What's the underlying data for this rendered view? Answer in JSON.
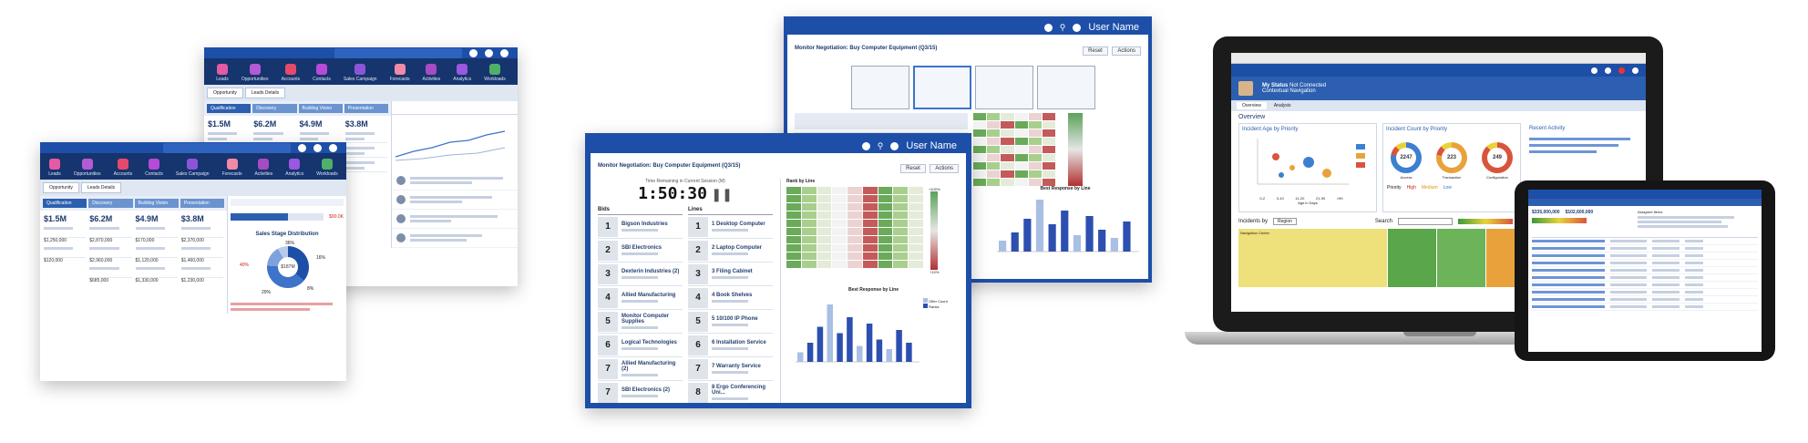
{
  "crm": {
    "topbar_user": "",
    "launcher_apps": [
      {
        "label": "Leads",
        "color": "#e45aa4"
      },
      {
        "label": "Opportunities",
        "color": "#b35bd4"
      },
      {
        "label": "Accounts",
        "color": "#e64a6a"
      },
      {
        "label": "Contacts",
        "color": "#b84ad8"
      },
      {
        "label": "Sales Campaign",
        "color": "#8c55d8"
      },
      {
        "label": "Forecasts",
        "color": "#f08aa5"
      },
      {
        "label": "Activities",
        "color": "#a64bc2"
      },
      {
        "label": "Analytics",
        "color": "#9a57e0"
      },
      {
        "label": "Workloads",
        "color": "#4fb06a"
      }
    ],
    "tabs": [
      "Opportunity",
      "Leads Details"
    ],
    "stages": [
      "Qualification",
      "Discovery",
      "Building Vision",
      "Presentation"
    ],
    "kpis": [
      "$1.5M",
      "$6.2M",
      "$4.9M",
      "$3.8M"
    ],
    "card_values": [
      "$1,250,000",
      "$2,870,000",
      "$170,000",
      "$2,370,000",
      "$120,000",
      "$2,960,000",
      "$1,120,000",
      "$1,460,000",
      "$685,000",
      "$1,330,000",
      "$1,230,000"
    ],
    "funnel_title": "Sales Stage Distribution",
    "funnel_total": "$187M",
    "funnel_segments": [
      "36%",
      "40%",
      "16%",
      "20%",
      "8%"
    ],
    "quota_label": "$90.0K"
  },
  "dashboard": {
    "user_label": "User Name",
    "title": "Monitor Negotiation: Buy Computer Equipment (Q3/15)",
    "back_button": "Reset",
    "actions_button": "Actions",
    "timer_caption": "Time Remaining in Current Session (M)",
    "timer": "1:50:30",
    "bids_header": "Bids",
    "lines_header": "Lines",
    "bid_rows": [
      {
        "rank": "1",
        "name": "Bigson Industries"
      },
      {
        "rank": "2",
        "name": "SBI Electronics"
      },
      {
        "rank": "3",
        "name": "Dexterin Industries (2)"
      },
      {
        "rank": "4",
        "name": "Allied Manufacturing"
      },
      {
        "rank": "5",
        "name": "Monitor Computer Supplies"
      },
      {
        "rank": "6",
        "name": "Logical Technologies"
      },
      {
        "rank": "7",
        "name": "Allied Manufacturing (2)"
      },
      {
        "rank": "7",
        "name": "SBI Electronics (2)"
      }
    ],
    "line_rows": [
      {
        "rank": "1",
        "name": "1 Desktop Computer"
      },
      {
        "rank": "2",
        "name": "2 Laptop Computer"
      },
      {
        "rank": "3",
        "name": "3 Filing Cabinet"
      },
      {
        "rank": "4",
        "name": "4 Book Shelves"
      },
      {
        "rank": "5",
        "name": "5 10/100 IP Phone"
      },
      {
        "rank": "6",
        "name": "6 Installation Service"
      },
      {
        "rank": "7",
        "name": "7 Warranty Service"
      },
      {
        "rank": "8",
        "name": "8 Ergo Conferencing Uni..."
      },
      {
        "rank": "9",
        "name": "9 Desktop Station"
      }
    ],
    "heatmap_title": "Rank by Line",
    "chart_title": "Best Response by Line",
    "legend": [
      "Offer Count",
      "Ranks"
    ],
    "scale_top": "+100%",
    "scale_bottom": "+10%"
  },
  "dashboard_back": {
    "user_label": "User Name",
    "title": "Monitor Negotiation: Buy Computer Equipment (Q3/15)",
    "back_button": "Reset",
    "actions_button": "Actions",
    "chart_title": "Best Response by Line",
    "heatmap_title": "Rank by Line"
  },
  "laptop": {
    "status_label": "My Status",
    "status_value": "Not Connected",
    "nav_label": "Contextual Navigation",
    "tabs": [
      "Overview",
      "Analysis"
    ],
    "section": "Overview",
    "age_title": "Incident Age by Priority",
    "count_title": "Incident Count by Priority",
    "activity_title": "Recent Activity",
    "donuts": [
      {
        "value": "2247",
        "label": "Access",
        "color": "#3d7fd1"
      },
      {
        "value": "223",
        "label": "Transaction",
        "color": "#e9a23b"
      },
      {
        "value": "249",
        "label": "Configuration",
        "color": "#d9543c"
      }
    ],
    "priority_label": "Priority",
    "priorities": [
      "High",
      "Medium",
      "Low"
    ],
    "xaxis": [
      "0-2",
      "3-10",
      "11-20",
      "21-90",
      ">90"
    ],
    "xaxis_title": "Age in Days",
    "incidents_label": "Incidents by",
    "incidents_select": "Region",
    "search_label": "Search",
    "treemap_label": "Navigation Center"
  },
  "tablet": {
    "kpi_1": "$335,000,000",
    "kpi_2": "$102,600,000",
    "rows_label": "Assigned Items"
  }
}
